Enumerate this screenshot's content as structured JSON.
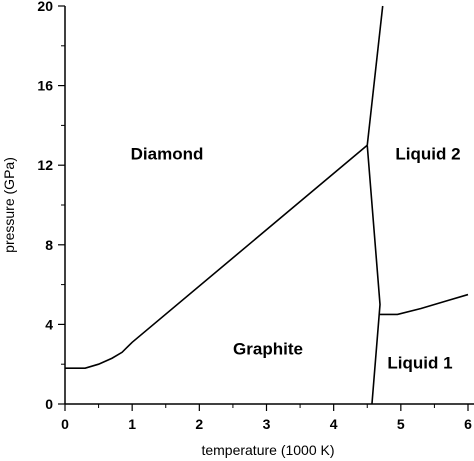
{
  "chart_data": {
    "type": "line",
    "xlabel": "temperature (1000 K)",
    "ylabel": "pressure (GPa)",
    "xlim": [
      0,
      6
    ],
    "ylim": [
      0,
      20
    ],
    "xticks": [
      0,
      1,
      2,
      3,
      4,
      5,
      6
    ],
    "yticks": [
      0,
      4,
      8,
      12,
      16,
      20
    ],
    "xticks_minor": [
      0.5,
      1.5,
      2.5,
      3.5,
      4.5,
      5.5
    ],
    "yticks_minor": [
      2,
      6,
      10,
      14,
      18
    ],
    "series": [
      {
        "color": "#000000",
        "x": [
          0,
          0.3,
          0.5,
          0.7,
          0.85,
          1.0,
          4.5
        ],
        "values": [
          1.8,
          1.8,
          2.0,
          2.3,
          2.6,
          3.1,
          13.0
        ]
      },
      {
        "color": "#000000",
        "x": [
          4.5,
          4.73
        ],
        "values": [
          13.0,
          20
        ]
      },
      {
        "color": "#000000",
        "x": [
          4.5,
          4.69,
          4.57
        ],
        "values": [
          13.0,
          5.0,
          0
        ]
      },
      {
        "color": "#000000",
        "x": [
          4.69,
          4.95,
          5.3,
          5.7,
          6.0
        ],
        "values": [
          4.5,
          4.5,
          4.8,
          5.2,
          5.5
        ]
      }
    ],
    "annotations": [
      {
        "text": "Diamond",
        "color": "#e0201b"
      },
      {
        "text": "Liquid 2",
        "color": "#1a6e2e"
      },
      {
        "text": "Graphite",
        "color": "#000000"
      },
      {
        "text": "Liquid 1",
        "color": "#1a2ed6"
      }
    ]
  }
}
